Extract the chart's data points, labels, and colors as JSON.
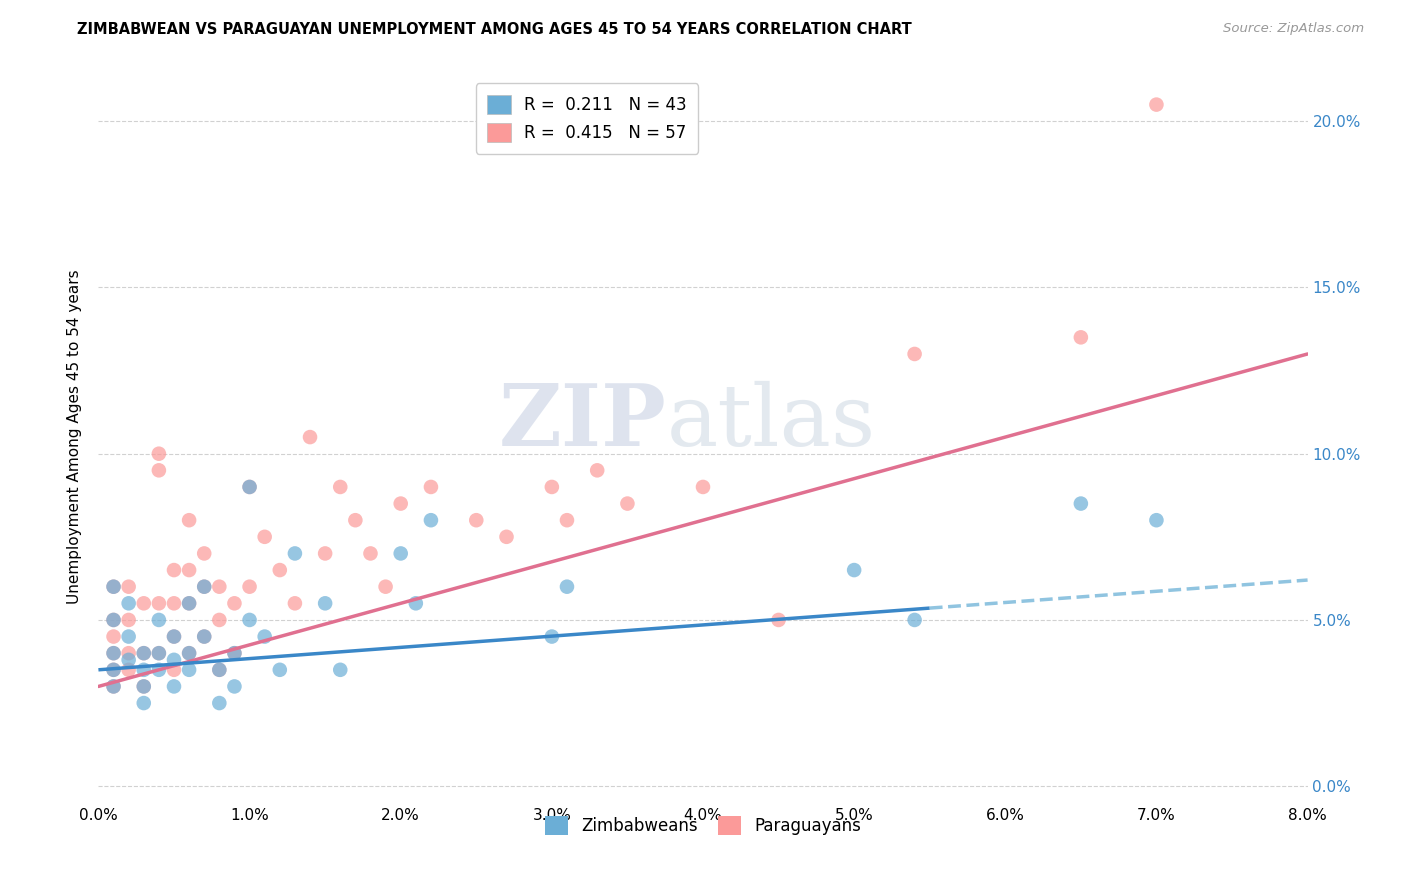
{
  "title": "ZIMBABWEAN VS PARAGUAYAN UNEMPLOYMENT AMONG AGES 45 TO 54 YEARS CORRELATION CHART",
  "source": "Source: ZipAtlas.com",
  "ylabel": "Unemployment Among Ages 45 to 54 years",
  "xlim": [
    0.0,
    0.08
  ],
  "ylim": [
    -0.005,
    0.215
  ],
  "xticks": [
    0.0,
    0.01,
    0.02,
    0.03,
    0.04,
    0.05,
    0.06,
    0.07,
    0.08
  ],
  "yticks": [
    0.0,
    0.05,
    0.1,
    0.15,
    0.2
  ],
  "xtick_labels": [
    "0.0%",
    "1.0%",
    "2.0%",
    "3.0%",
    "4.0%",
    "5.0%",
    "6.0%",
    "7.0%",
    "8.0%"
  ],
  "ytick_labels_right": [
    "0.0%",
    "5.0%",
    "10.0%",
    "15.0%",
    "20.0%"
  ],
  "zim_color": "#6baed6",
  "par_color": "#fb9a99",
  "zim_line_color": "#3a87c8",
  "zim_dash_color": "#90c4e0",
  "par_line_color": "#e07090",
  "zim_R": 0.211,
  "zim_N": 43,
  "par_R": 0.415,
  "par_N": 57,
  "watermark_zip": "ZIP",
  "watermark_atlas": "atlas",
  "zim_x": [
    0.001,
    0.001,
    0.001,
    0.001,
    0.001,
    0.002,
    0.002,
    0.002,
    0.003,
    0.003,
    0.003,
    0.003,
    0.004,
    0.004,
    0.004,
    0.005,
    0.005,
    0.005,
    0.006,
    0.006,
    0.006,
    0.007,
    0.007,
    0.008,
    0.008,
    0.009,
    0.009,
    0.01,
    0.01,
    0.011,
    0.012,
    0.013,
    0.015,
    0.016,
    0.02,
    0.021,
    0.022,
    0.03,
    0.031,
    0.05,
    0.054,
    0.065,
    0.07
  ],
  "zim_y": [
    0.035,
    0.04,
    0.05,
    0.06,
    0.03,
    0.045,
    0.038,
    0.055,
    0.04,
    0.035,
    0.03,
    0.025,
    0.05,
    0.04,
    0.035,
    0.045,
    0.038,
    0.03,
    0.055,
    0.04,
    0.035,
    0.06,
    0.045,
    0.035,
    0.025,
    0.04,
    0.03,
    0.09,
    0.05,
    0.045,
    0.035,
    0.07,
    0.055,
    0.035,
    0.07,
    0.055,
    0.08,
    0.045,
    0.06,
    0.065,
    0.05,
    0.085,
    0.08
  ],
  "par_x": [
    0.001,
    0.001,
    0.001,
    0.001,
    0.001,
    0.001,
    0.002,
    0.002,
    0.002,
    0.002,
    0.003,
    0.003,
    0.003,
    0.004,
    0.004,
    0.004,
    0.004,
    0.005,
    0.005,
    0.005,
    0.005,
    0.006,
    0.006,
    0.006,
    0.006,
    0.007,
    0.007,
    0.007,
    0.008,
    0.008,
    0.008,
    0.009,
    0.009,
    0.01,
    0.01,
    0.011,
    0.012,
    0.013,
    0.014,
    0.015,
    0.016,
    0.017,
    0.018,
    0.019,
    0.02,
    0.022,
    0.025,
    0.027,
    0.03,
    0.031,
    0.033,
    0.035,
    0.04,
    0.045,
    0.054,
    0.065,
    0.07
  ],
  "par_y": [
    0.04,
    0.05,
    0.035,
    0.03,
    0.06,
    0.045,
    0.06,
    0.04,
    0.05,
    0.035,
    0.055,
    0.04,
    0.03,
    0.1,
    0.095,
    0.055,
    0.04,
    0.065,
    0.055,
    0.045,
    0.035,
    0.08,
    0.065,
    0.055,
    0.04,
    0.07,
    0.06,
    0.045,
    0.06,
    0.05,
    0.035,
    0.055,
    0.04,
    0.09,
    0.06,
    0.075,
    0.065,
    0.055,
    0.105,
    0.07,
    0.09,
    0.08,
    0.07,
    0.06,
    0.085,
    0.09,
    0.08,
    0.075,
    0.09,
    0.08,
    0.095,
    0.085,
    0.09,
    0.05,
    0.13,
    0.135,
    0.205
  ],
  "zim_trend_x0": 0.0,
  "zim_trend_x1": 0.08,
  "zim_trend_y0": 0.035,
  "zim_trend_y1": 0.062,
  "par_trend_x0": 0.0,
  "par_trend_x1": 0.08,
  "par_trend_y0": 0.03,
  "par_trend_y1": 0.13
}
